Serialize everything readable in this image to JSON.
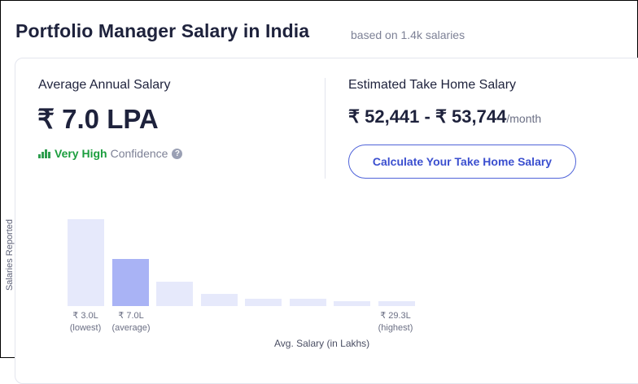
{
  "header": {
    "title": "Portfolio Manager Salary in India",
    "subtitle": "based on 1.4k salaries"
  },
  "average": {
    "label": "Average Annual Salary",
    "value": "₹ 7.0 LPA",
    "confidence_level": "Very High",
    "confidence_label": "Confidence",
    "confidence_color": "#1b9e3e"
  },
  "take_home": {
    "label": "Estimated Take Home Salary",
    "value": "₹ 52,441 - ₹ 53,744",
    "unit": "/month",
    "button_label": "Calculate Your Take Home Salary",
    "accent_color": "#4f63d9"
  },
  "chart_data": {
    "type": "bar",
    "ylabel": "Salaries Reported",
    "xlabel": "Avg. Salary (in Lakhs)",
    "values": [
      100,
      54,
      28,
      14,
      8,
      8,
      6,
      6
    ],
    "highlight_index": 1,
    "ticks": [
      {
        "value": "₹ 3.0L",
        "caption": "(lowest)"
      },
      {
        "value": "₹ 7.0L",
        "caption": "(average)"
      },
      {
        "value": "₹ 29.3L",
        "caption": "(highest)"
      }
    ],
    "bar_color": "#e6e9fb",
    "highlight_color": "#a9b3f5"
  }
}
